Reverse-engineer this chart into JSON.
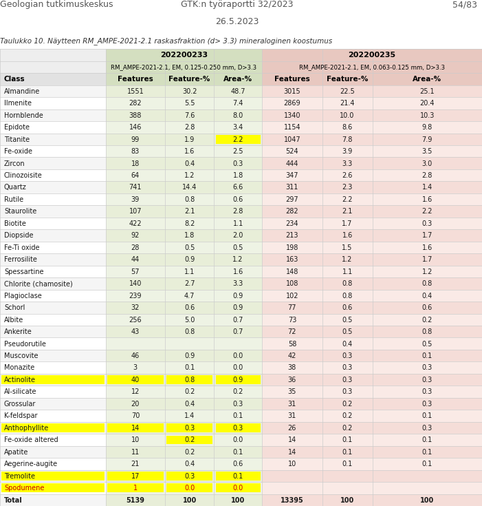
{
  "header_left": "Geologian tutkimuskeskus",
  "header_center": "GTK:n työraportti 32/2023",
  "header_right": "54/83",
  "date": "26.5.2023",
  "caption": "Taulukko 10. Näytteen RM_AMPE-2021-2.1 raskasfraktion (d> 3.3) mineraloginen koostumus",
  "col1_header1": "202200233",
  "col2_header1": "202200235",
  "col1_header2": "RM_AMPE-2021-2.1, EM, 0.125-0.250 mm, D>3.3",
  "col2_header2": "RM_AMPE-2021-2.1, EM, 0.063-0.125 mm, D>3.3",
  "columns": [
    "Class",
    "Features",
    "Feature-%",
    "Area-%",
    "Features",
    "Feature-%",
    "Area-%"
  ],
  "rows": [
    [
      "Almandine",
      "1551",
      "30.2",
      "48.7",
      "3015",
      "22.5",
      "25.1",
      null
    ],
    [
      "Ilmenite",
      "282",
      "5.5",
      "7.4",
      "2869",
      "21.4",
      "20.4",
      null
    ],
    [
      "Hornblende",
      "388",
      "7.6",
      "8.0",
      "1340",
      "10.0",
      "10.3",
      null
    ],
    [
      "Epidote",
      "146",
      "2.8",
      "3.4",
      "1154",
      "8.6",
      "9.8",
      null
    ],
    [
      "Titanite",
      "99",
      "1.9",
      "2.2",
      "1047",
      "7.8",
      "7.9",
      "titanite"
    ],
    [
      "Fe-oxide",
      "83",
      "1.6",
      "2.5",
      "524",
      "3.9",
      "3.5",
      null
    ],
    [
      "Zircon",
      "18",
      "0.4",
      "0.3",
      "444",
      "3.3",
      "3.0",
      null
    ],
    [
      "Clinozoisite",
      "64",
      "1.2",
      "1.8",
      "347",
      "2.6",
      "2.8",
      null
    ],
    [
      "Quartz",
      "741",
      "14.4",
      "6.6",
      "311",
      "2.3",
      "1.4",
      null
    ],
    [
      "Rutile",
      "39",
      "0.8",
      "0.6",
      "297",
      "2.2",
      "1.6",
      null
    ],
    [
      "Staurolite",
      "107",
      "2.1",
      "2.8",
      "282",
      "2.1",
      "2.2",
      null
    ],
    [
      "Biotite",
      "422",
      "8.2",
      "1.1",
      "234",
      "1.7",
      "0.3",
      null
    ],
    [
      "Diopside",
      "92",
      "1.8",
      "2.0",
      "213",
      "1.6",
      "1.7",
      null
    ],
    [
      "Fe-Ti oxide",
      "28",
      "0.5",
      "0.5",
      "198",
      "1.5",
      "1.6",
      null
    ],
    [
      "Ferrosilite",
      "44",
      "0.9",
      "1.2",
      "163",
      "1.2",
      "1.7",
      null
    ],
    [
      "Spessartine",
      "57",
      "1.1",
      "1.6",
      "148",
      "1.1",
      "1.2",
      null
    ],
    [
      "Chlorite (chamosite)",
      "140",
      "2.7",
      "3.3",
      "108",
      "0.8",
      "0.8",
      null
    ],
    [
      "Plagioclase",
      "239",
      "4.7",
      "0.9",
      "102",
      "0.8",
      "0.4",
      null
    ],
    [
      "Schorl",
      "32",
      "0.6",
      "0.9",
      "77",
      "0.6",
      "0.6",
      null
    ],
    [
      "Albite",
      "256",
      "5.0",
      "0.7",
      "73",
      "0.5",
      "0.2",
      null
    ],
    [
      "Ankerite",
      "43",
      "0.8",
      "0.7",
      "72",
      "0.5",
      "0.8",
      null
    ],
    [
      "Pseudorutile",
      "",
      "",
      "",
      "58",
      "0.4",
      "0.5",
      null
    ],
    [
      "Muscovite",
      "46",
      "0.9",
      "0.0",
      "42",
      "0.3",
      "0.1",
      null
    ],
    [
      "Monazite",
      "3",
      "0.1",
      "0.0",
      "38",
      "0.3",
      "0.3",
      null
    ],
    [
      "Actinolite",
      "40",
      "0.8",
      "0.9",
      "36",
      "0.3",
      "0.3",
      "yellow"
    ],
    [
      "Al-silicate",
      "12",
      "0.2",
      "0.2",
      "35",
      "0.3",
      "0.3",
      null
    ],
    [
      "Grossular",
      "20",
      "0.4",
      "0.3",
      "31",
      "0.2",
      "0.3",
      null
    ],
    [
      "K-feldspar",
      "70",
      "1.4",
      "0.1",
      "31",
      "0.2",
      "0.1",
      null
    ],
    [
      "Anthophyllite",
      "14",
      "0.3",
      "0.3",
      "26",
      "0.2",
      "0.3",
      "yellow"
    ],
    [
      "Fe-oxide altered",
      "10",
      "0.2",
      "0.0",
      "14",
      "0.1",
      "0.1",
      "yellow_partial"
    ],
    [
      "Apatite",
      "11",
      "0.2",
      "0.1",
      "14",
      "0.1",
      "0.1",
      null
    ],
    [
      "Aegerine-augite",
      "21",
      "0.4",
      "0.6",
      "10",
      "0.1",
      "0.1",
      null
    ],
    [
      "Tremolite",
      "17",
      "0.3",
      "0.1",
      "",
      "",
      "",
      "yellow"
    ],
    [
      "Spodumene",
      "1",
      "0.0",
      "0.0",
      "",
      "",
      "",
      "red_text"
    ],
    [
      "Total",
      "5139",
      "100",
      "100",
      "13395",
      "100",
      "100",
      null
    ]
  ],
  "bg_color": "#ffffff",
  "col1_bg": "#e8eed8",
  "col2_bg": "#f5ddd8",
  "header_bg1": "#d4dfc0",
  "header_bg2": "#e8c8c0",
  "row_odd_bg1": "#eef3e4",
  "row_odd_bg2": "#faeae6",
  "row_odd_left": "#f5f5f5",
  "row_even_left": "#ffffff",
  "yellow_highlight": "#ffff00",
  "red_text_color": "#cc0000",
  "grid_color": "#cccccc"
}
